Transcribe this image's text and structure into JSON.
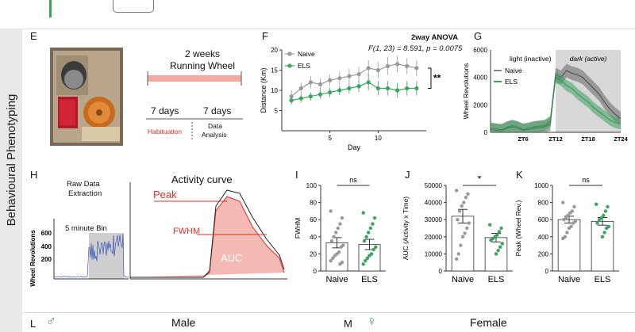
{
  "section_label": "Behavioural Phenotyping",
  "panel_letters": {
    "E": "E",
    "F": "F",
    "G": "G",
    "H": "H",
    "I": "I",
    "J": "J",
    "K": "K",
    "L": "L",
    "M": "M"
  },
  "panel_e": {
    "timeline_title_1": "2 weeks",
    "timeline_title_2": "Running Wheel",
    "phase1_days": "7 days",
    "phase2_days": "7 days",
    "phase1_label": "Habituation",
    "phase2_label_1": "Data",
    "phase2_label_2": "Analysis",
    "colors": {
      "bar": "#f4aaa0",
      "habituation": "#e0302a"
    }
  },
  "panel_f": {
    "stats_title": "2way ANOVA",
    "stats_line": "F(1, 23) = 8.591,  p = 0.0075",
    "significance": "**",
    "legend_naive": "Naive",
    "legend_els": "ELS"
  },
  "panel_g": {
    "annotation_light": "light (inactive)",
    "annotation_dark": "dark (active)",
    "legend_naive": "Naive",
    "legend_els": "ELS"
  },
  "panel_h": {
    "raw_label_1": "Raw Data",
    "raw_label_2": "Extraction",
    "bin_label": "5 minute Bin",
    "curve_title": "Activity curve",
    "peak_label": "Peak",
    "fwhm_label": "FWHM",
    "auc_label": "AUC",
    "ylabel": "Wheel Revolutions",
    "yticks": [
      "600",
      "400",
      "200"
    ]
  },
  "panel_l": {
    "sex_symbol": "♂",
    "title": "Male"
  },
  "panel_m": {
    "sex_symbol": "♀",
    "title": "Female"
  },
  "chart_data": [
    {
      "id": "F",
      "type": "line",
      "title": "",
      "xlabel": "Day",
      "ylabel": "Distance (Km)",
      "xlim": [
        0,
        15
      ],
      "ylim": [
        0,
        20
      ],
      "xticks": [
        5,
        10
      ],
      "yticks": [
        5,
        10,
        15,
        20
      ],
      "x": [
        1,
        2,
        3,
        4,
        5,
        6,
        7,
        8,
        9,
        10,
        11,
        12,
        13,
        14
      ],
      "series": [
        {
          "name": "Naive",
          "color": "#999999",
          "values": [
            8.5,
            10.5,
            12,
            11.5,
            12.5,
            13,
            13.5,
            14,
            15.5,
            15,
            16,
            16.5,
            16,
            15.5
          ],
          "errors": [
            1.5,
            1.5,
            1.5,
            1.5,
            1.5,
            1.5,
            1.8,
            1.8,
            2,
            2,
            2.2,
            2,
            2,
            2
          ]
        },
        {
          "name": "ELS",
          "color": "#3aa35c",
          "values": [
            7.5,
            8,
            8.5,
            9,
            9.5,
            10,
            10.5,
            11,
            12,
            10.5,
            10.5,
            10,
            10.5,
            10.5
          ],
          "errors": [
            1,
            1,
            1,
            1,
            1.2,
            1.2,
            1.3,
            1.5,
            2,
            1.8,
            1.8,
            1.8,
            1.8,
            1.8
          ]
        }
      ],
      "legend_position": "top-left"
    },
    {
      "id": "G",
      "type": "area",
      "xlabel": "",
      "ylabel": "Wheel Revolutions",
      "xlim": [
        0,
        24
      ],
      "ylim": [
        0,
        6000
      ],
      "xticks": [
        "ZT6",
        "ZT12",
        "ZT18",
        "ZT24"
      ],
      "yticks": [
        0,
        2000,
        4000,
        6000
      ],
      "x": [
        0,
        1,
        2,
        3,
        4,
        5,
        6,
        7,
        8,
        9,
        10,
        11,
        12,
        13,
        14,
        15,
        16,
        17,
        18,
        19,
        20,
        21,
        22,
        23,
        24
      ],
      "series": [
        {
          "name": "Naive",
          "color": "#666666",
          "values": [
            200,
            150,
            100,
            300,
            400,
            300,
            150,
            200,
            300,
            350,
            400,
            600,
            4200,
            4000,
            4500,
            4300,
            4200,
            4000,
            3600,
            3200,
            2800,
            2200,
            1700,
            1300,
            1000
          ]
        },
        {
          "name": "ELS",
          "color": "#3aa35c",
          "values": [
            300,
            250,
            200,
            350,
            500,
            400,
            200,
            300,
            400,
            450,
            500,
            800,
            4000,
            3800,
            3400,
            3200,
            2800,
            2500,
            2200,
            1800,
            1500,
            1200,
            900,
            700,
            600
          ]
        }
      ],
      "shaded_region": [
        12,
        24
      ]
    },
    {
      "id": "I",
      "type": "bar",
      "ylabel": "FWHM",
      "ylim": [
        0,
        100
      ],
      "yticks": [
        0,
        20,
        40,
        60,
        80,
        100
      ],
      "categories": [
        "Naive",
        "ELS"
      ],
      "values": [
        33,
        31
      ],
      "errors": [
        6,
        6
      ],
      "significance": "ns",
      "points": [
        [
          70,
          62,
          55,
          50,
          45,
          40,
          35,
          30,
          28,
          22,
          20,
          18,
          15,
          12,
          10,
          8
        ],
        [
          68,
          62,
          55,
          50,
          45,
          40,
          35,
          28,
          25,
          20,
          18,
          15,
          12,
          8
        ]
      ]
    },
    {
      "id": "J",
      "type": "bar",
      "ylabel": "AUC (Activity x Time)",
      "ylim": [
        0,
        50000
      ],
      "yticks": [
        0,
        10000,
        20000,
        30000,
        40000,
        50000
      ],
      "categories": [
        "Naive",
        "ELS"
      ],
      "values": [
        32000,
        19500
      ],
      "errors": [
        4000,
        2500
      ],
      "significance": "*",
      "points": [
        [
          47000,
          45000,
          43000,
          40000,
          38000,
          35000,
          30000,
          28000,
          25000,
          22000,
          20000,
          15000,
          10000,
          7000
        ],
        [
          27000,
          25000,
          23000,
          21000,
          20000,
          19000,
          18000,
          16000,
          14000,
          12000,
          10000
        ]
      ]
    },
    {
      "id": "K",
      "type": "bar",
      "ylabel": "Peak (Wheel Rev.)",
      "ylim": [
        0,
        1000
      ],
      "yticks": [
        0,
        200,
        400,
        600,
        800,
        1000
      ],
      "categories": [
        "Naive",
        "ELS"
      ],
      "values": [
        600,
        580
      ],
      "errors": [
        40,
        45
      ],
      "significance": "ns",
      "points": [
        [
          800,
          750,
          700,
          680,
          650,
          620,
          600,
          580,
          560,
          520,
          500,
          450,
          400,
          380
        ],
        [
          780,
          750,
          700,
          650,
          620,
          600,
          560,
          520,
          500,
          450,
          400
        ]
      ]
    }
  ]
}
